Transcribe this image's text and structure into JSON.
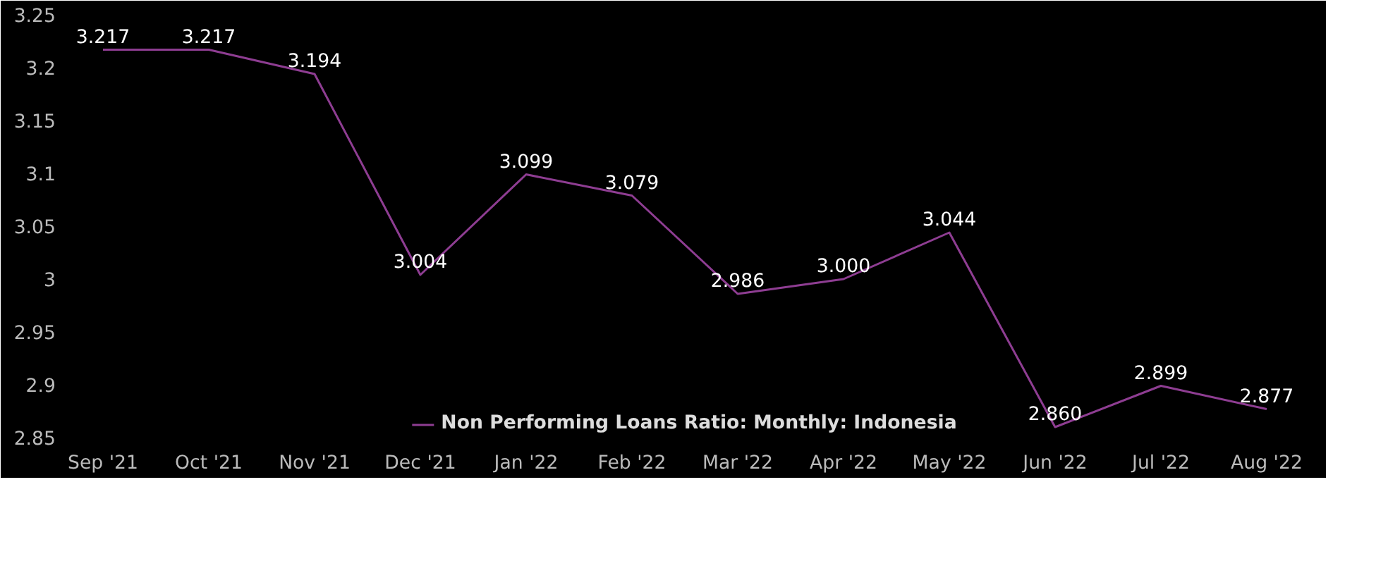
{
  "chart_data": {
    "type": "line",
    "categories": [
      "Sep '21",
      "Oct '21",
      "Nov '21",
      "Dec '21",
      "Jan '22",
      "Feb '22",
      "Mar '22",
      "Apr '22",
      "May '22",
      "Jun '22",
      "Jul '22",
      "Aug '22"
    ],
    "series": [
      {
        "name": "Non Performing Loans Ratio: Monthly: Indonesia",
        "color": "#8e3d92",
        "values": [
          3.217,
          3.217,
          3.194,
          3.004,
          3.099,
          3.079,
          2.986,
          3.0,
          3.044,
          2.86,
          2.899,
          2.877
        ]
      }
    ],
    "ylim": [
      2.85,
      3.25
    ],
    "yticks": [
      2.85,
      2.9,
      2.95,
      3,
      3.05,
      3.1,
      3.15,
      3.2,
      3.25
    ],
    "grid": false,
    "legend": "bottom",
    "marker": "none",
    "line_style": "solid",
    "value_labels": [
      "3.217",
      "3.217",
      "3.194",
      "3.004",
      "3.099",
      "3.079",
      "2.986",
      "3.000",
      "3.044",
      "2.860",
      "2.899",
      "2.877"
    ]
  }
}
